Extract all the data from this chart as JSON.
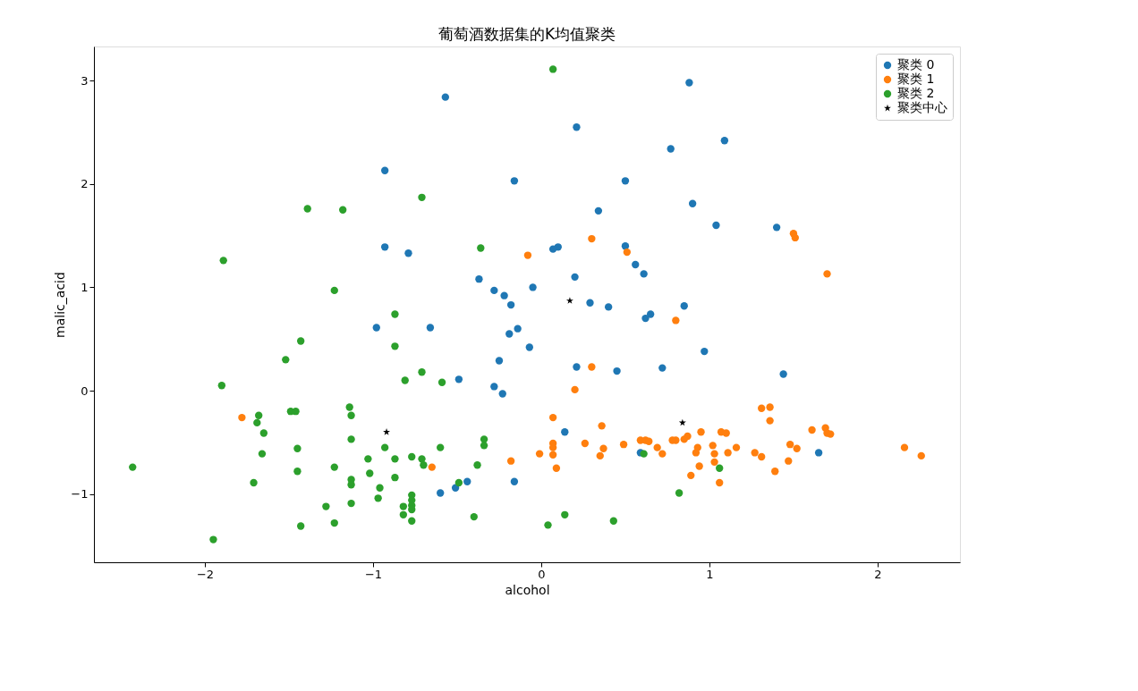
{
  "chart_data": {
    "type": "scatter",
    "title": "葡萄酒数据集的K均值聚类",
    "xlabel": "alcohol",
    "ylabel": "malic_acid",
    "xlim": [
      -2.66,
      2.49
    ],
    "ylim": [
      -1.66,
      3.33
    ],
    "xticks": [
      -2,
      -1,
      0,
      1,
      2
    ],
    "yticks": [
      -1,
      0,
      1,
      2,
      3
    ],
    "legend": "top right",
    "grid": false,
    "series": [
      {
        "name": "聚类 0",
        "color": "#1f77b4",
        "marker": "circle",
        "x": [
          -0.57,
          0.88,
          0.21,
          0.77,
          1.09,
          -0.93,
          -0.16,
          0.5,
          0.9,
          0.34,
          1.04,
          1.4,
          -0.93,
          -0.79,
          0.1,
          0.07,
          0.5,
          0.56,
          0.61,
          0.2,
          -0.37,
          -0.05,
          -0.28,
          -0.22,
          -0.18,
          0.29,
          0.4,
          0.85,
          0.65,
          0.62,
          -0.66,
          -0.98,
          -0.14,
          -0.19,
          -0.07,
          0.97,
          -0.25,
          0.21,
          0.45,
          0.72,
          -0.49,
          -0.28,
          -0.23,
          1.44,
          0.14,
          1.65,
          0.59,
          -0.44,
          -0.51,
          -0.6,
          -0.16
        ],
        "values": [
          2.84,
          2.98,
          2.55,
          2.34,
          2.42,
          2.13,
          2.03,
          2.03,
          1.81,
          1.74,
          1.6,
          1.58,
          1.39,
          1.33,
          1.39,
          1.37,
          1.4,
          1.22,
          1.13,
          1.1,
          1.08,
          1.0,
          0.97,
          0.92,
          0.83,
          0.85,
          0.81,
          0.82,
          0.74,
          0.7,
          0.61,
          0.61,
          0.6,
          0.55,
          0.42,
          0.38,
          0.29,
          0.23,
          0.19,
          0.22,
          0.11,
          0.04,
          -0.03,
          0.16,
          -0.4,
          -0.6,
          -0.6,
          -0.88,
          -0.94,
          -0.99,
          -0.88
        ]
      },
      {
        "name": "聚类 1",
        "color": "#ff7f0e",
        "marker": "circle",
        "x": [
          0.3,
          -0.08,
          0.51,
          1.5,
          1.51,
          1.7,
          0.8,
          1.31,
          1.36,
          1.36,
          0.95,
          1.07,
          1.1,
          1.61,
          1.69,
          1.7,
          1.72,
          0.87,
          0.85,
          0.8,
          0.93,
          0.92,
          1.02,
          1.03,
          1.03,
          1.11,
          1.16,
          1.27,
          1.31,
          1.48,
          1.52,
          1.47,
          1.39,
          0.94,
          0.89,
          1.06,
          2.16,
          2.26,
          0.3,
          0.2,
          0.07,
          0.36,
          0.26,
          0.37,
          0.35,
          0.49,
          0.07,
          0.07,
          0.07,
          -0.01,
          0.09,
          -0.18,
          -0.65,
          0.59,
          0.62,
          0.64,
          0.69,
          0.72,
          0.78,
          -1.78
        ],
        "values": [
          1.47,
          1.31,
          1.34,
          1.52,
          1.48,
          1.13,
          0.68,
          -0.17,
          -0.16,
          -0.29,
          -0.4,
          -0.4,
          -0.41,
          -0.38,
          -0.36,
          -0.41,
          -0.42,
          -0.44,
          -0.47,
          -0.48,
          -0.55,
          -0.6,
          -0.53,
          -0.61,
          -0.69,
          -0.6,
          -0.55,
          -0.6,
          -0.64,
          -0.52,
          -0.56,
          -0.68,
          -0.78,
          -0.73,
          -0.82,
          -0.89,
          -0.55,
          -0.63,
          0.23,
          0.01,
          -0.26,
          -0.34,
          -0.51,
          -0.56,
          -0.63,
          -0.52,
          -0.51,
          -0.55,
          -0.62,
          -0.61,
          -0.75,
          -0.68,
          -0.74,
          -0.48,
          -0.48,
          -0.49,
          -0.55,
          -0.61,
          -0.48,
          -0.26
        ]
      },
      {
        "name": "聚类 2",
        "color": "#2ca02c",
        "marker": "circle",
        "x": [
          0.07,
          -0.71,
          -0.36,
          -1.39,
          -1.18,
          -1.89,
          -1.23,
          -1.43,
          -1.52,
          -1.9,
          -1.68,
          -1.69,
          -1.65,
          -1.49,
          -1.46,
          -1.14,
          -1.13,
          -1.13,
          -1.66,
          -1.45,
          -1.45,
          -2.43,
          -1.71,
          -1.23,
          -1.13,
          -1.13,
          -1.03,
          -1.02,
          -0.96,
          -0.97,
          -1.13,
          -1.28,
          -1.23,
          -1.43,
          -1.95,
          -0.93,
          -0.87,
          -0.87,
          -0.71,
          -0.81,
          -0.59,
          -0.87,
          -0.87,
          -0.77,
          -0.71,
          -0.7,
          -0.6,
          -0.34,
          -0.34,
          -0.38,
          -0.49,
          -0.77,
          -0.77,
          -0.77,
          -0.77,
          -0.82,
          -0.82,
          -0.77,
          -0.4,
          0.04,
          0.14,
          0.43,
          0.61,
          0.82,
          1.06
        ],
        "values": [
          3.11,
          1.87,
          1.38,
          1.76,
          1.75,
          1.26,
          0.97,
          0.48,
          0.3,
          0.05,
          -0.24,
          -0.31,
          -0.41,
          -0.2,
          -0.2,
          -0.16,
          -0.24,
          -0.47,
          -0.61,
          -0.56,
          -0.78,
          -0.74,
          -0.89,
          -0.74,
          -0.86,
          -0.91,
          -0.66,
          -0.8,
          -0.94,
          -1.04,
          -1.09,
          -1.12,
          -1.28,
          -1.31,
          -1.44,
          -0.55,
          0.74,
          0.43,
          0.18,
          0.1,
          0.08,
          -0.66,
          -0.84,
          -0.64,
          -0.66,
          -0.72,
          -0.55,
          -0.47,
          -0.53,
          -0.72,
          -0.89,
          -1.01,
          -1.06,
          -1.11,
          -1.15,
          -1.12,
          -1.2,
          -1.26,
          -1.22,
          -1.3,
          -1.2,
          -1.26,
          -0.61,
          -0.99,
          -0.75
        ]
      },
      {
        "name": "聚类中心",
        "color": "#000000",
        "marker": "star",
        "x": [
          0.17,
          -0.92,
          0.84
        ],
        "values": [
          0.87,
          -0.4,
          -0.31
        ]
      }
    ]
  }
}
